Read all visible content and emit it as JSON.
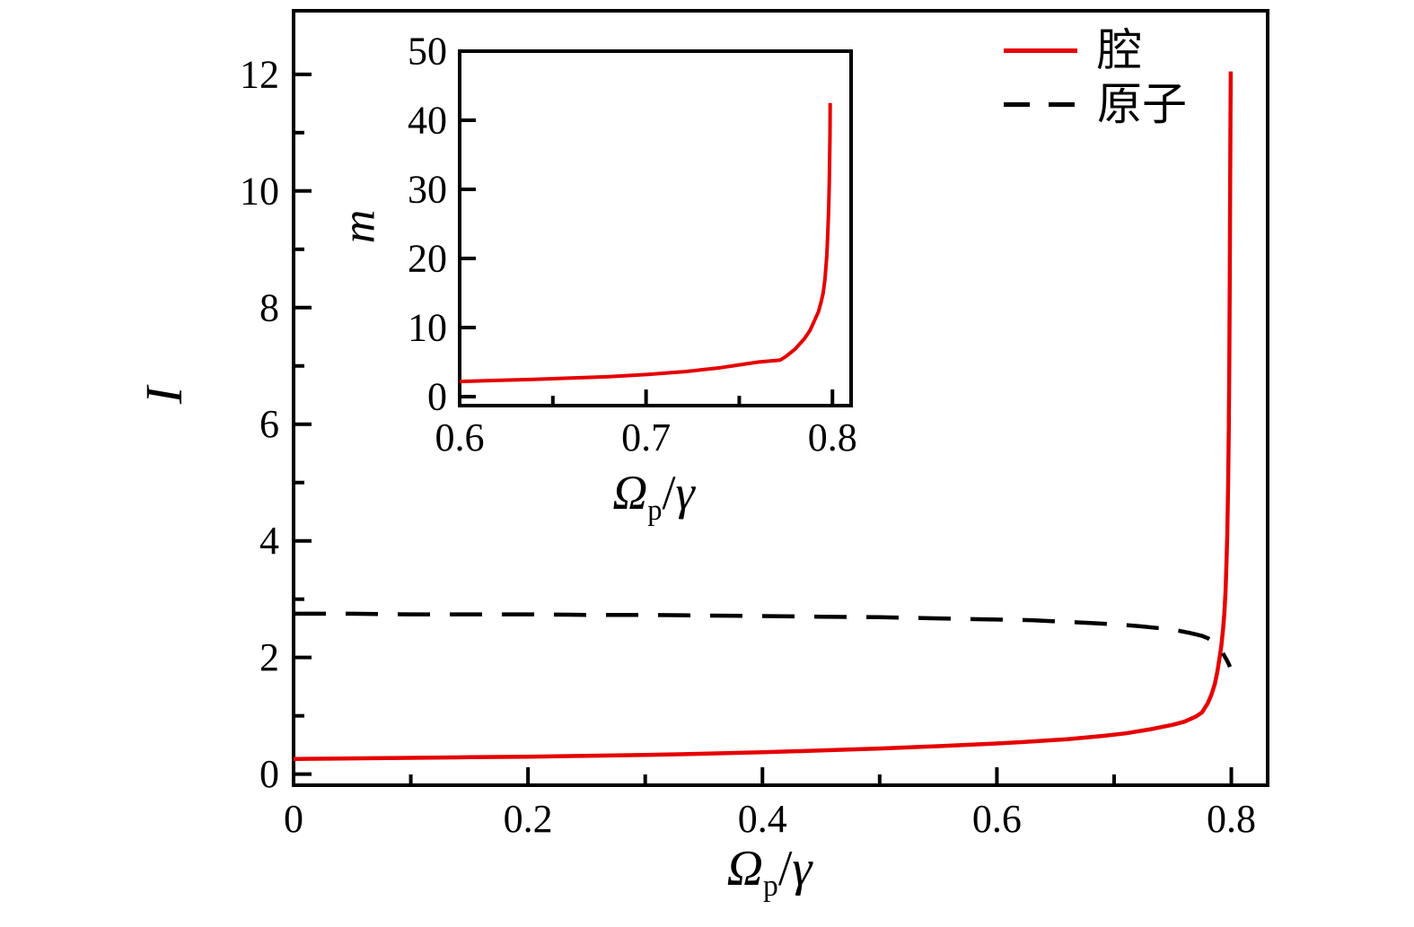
{
  "figure": {
    "background": "#ffffff",
    "colors": {
      "cavity": "#e60000",
      "atom": "#000000",
      "axis": "#000000"
    }
  },
  "legend": {
    "position": "top-right",
    "items": [
      {
        "label": "腔",
        "series": "cavity",
        "line": "solid",
        "color": "#e60000"
      },
      {
        "label": "原子",
        "series": "atom",
        "line": "dashed",
        "color": "#000000"
      }
    ]
  },
  "labels": {
    "main_x": {
      "omega": "Ω",
      "sub": "p",
      "slash": "/",
      "gamma": "γ"
    },
    "main_y": "I",
    "inset_x": {
      "omega": "Ω",
      "sub": "p",
      "slash": "/",
      "gamma": "γ"
    },
    "inset_y": "m"
  },
  "chart_data": [
    {
      "id": "main",
      "type": "line",
      "title": "",
      "xlabel": "Ω_p/γ",
      "ylabel": "I",
      "xlim": [
        0,
        0.831
      ],
      "ylim": [
        -0.19,
        13.09
      ],
      "grid": false,
      "legend_position": "top-right",
      "x_ticks": {
        "major": [
          0,
          0.2,
          0.4,
          0.6,
          0.8
        ],
        "minor": [
          0.1,
          0.3,
          0.5,
          0.7
        ],
        "labels": [
          "0",
          "0.2",
          "0.4",
          "0.6",
          "0.8"
        ]
      },
      "y_ticks": {
        "major": [
          0,
          2,
          4,
          6,
          8,
          10,
          12
        ],
        "minor": [
          1,
          3,
          5,
          7,
          9,
          11
        ],
        "labels": [
          "0",
          "2",
          "4",
          "6",
          "8",
          "10",
          "12"
        ]
      },
      "series": [
        {
          "key": "cavity",
          "name": "腔",
          "style": "solid",
          "color": "#e60000",
          "width": 4.5,
          "points": [
            [
              0.0,
              0.26
            ],
            [
              0.05,
              0.27
            ],
            [
              0.1,
              0.28
            ],
            [
              0.15,
              0.29
            ],
            [
              0.2,
              0.3
            ],
            [
              0.25,
              0.315
            ],
            [
              0.3,
              0.33
            ],
            [
              0.35,
              0.35
            ],
            [
              0.4,
              0.375
            ],
            [
              0.45,
              0.405
            ],
            [
              0.5,
              0.44
            ],
            [
              0.55,
              0.48
            ],
            [
              0.6,
              0.525
            ],
            [
              0.63,
              0.56
            ],
            [
              0.66,
              0.6
            ],
            [
              0.69,
              0.655
            ],
            [
              0.71,
              0.7
            ],
            [
              0.73,
              0.765
            ],
            [
              0.75,
              0.845
            ],
            [
              0.76,
              0.9
            ],
            [
              0.77,
              0.99
            ],
            [
              0.775,
              1.06
            ],
            [
              0.78,
              1.22
            ],
            [
              0.783,
              1.36
            ],
            [
              0.786,
              1.55
            ],
            [
              0.788,
              1.75
            ],
            [
              0.79,
              2.0
            ],
            [
              0.7915,
              2.2
            ],
            [
              0.793,
              2.5
            ],
            [
              0.794,
              2.75
            ],
            [
              0.795,
              3.1
            ],
            [
              0.7957,
              3.5
            ],
            [
              0.7965,
              4.1
            ],
            [
              0.7972,
              4.9
            ],
            [
              0.7978,
              5.9
            ],
            [
              0.7983,
              7.1
            ],
            [
              0.7987,
              8.5
            ],
            [
              0.799,
              10.0
            ],
            [
              0.7993,
              11.3
            ],
            [
              0.7995,
              12.05
            ]
          ]
        },
        {
          "key": "atom",
          "name": "原子",
          "style": "dashed",
          "color": "#000000",
          "width": 4.5,
          "points": [
            [
              0.0,
              2.75
            ],
            [
              0.05,
              2.75
            ],
            [
              0.1,
              2.74
            ],
            [
              0.15,
              2.74
            ],
            [
              0.2,
              2.74
            ],
            [
              0.25,
              2.73
            ],
            [
              0.3,
              2.73
            ],
            [
              0.35,
              2.72
            ],
            [
              0.4,
              2.71
            ],
            [
              0.45,
              2.7
            ],
            [
              0.5,
              2.69
            ],
            [
              0.55,
              2.67
            ],
            [
              0.6,
              2.65
            ],
            [
              0.63,
              2.64
            ],
            [
              0.66,
              2.61
            ],
            [
              0.68,
              2.59
            ],
            [
              0.7,
              2.57
            ],
            [
              0.72,
              2.54
            ],
            [
              0.74,
              2.5
            ],
            [
              0.755,
              2.46
            ],
            [
              0.765,
              2.42
            ],
            [
              0.775,
              2.37
            ],
            [
              0.78,
              2.33
            ],
            [
              0.785,
              2.27
            ],
            [
              0.789,
              2.18
            ],
            [
              0.792,
              2.1
            ],
            [
              0.794,
              2.03
            ],
            [
              0.796,
              1.96
            ],
            [
              0.798,
              1.88
            ],
            [
              0.7988,
              1.84
            ]
          ]
        }
      ]
    },
    {
      "id": "inset",
      "type": "line",
      "title": "",
      "xlabel": "Ω_p/γ",
      "ylabel": "m",
      "xlim": [
        0.6,
        0.81
      ],
      "ylim": [
        -1.3,
        50
      ],
      "grid": false,
      "legend_position": "none",
      "x_ticks": {
        "major": [
          0.6,
          0.7,
          0.8
        ],
        "minor": [
          0.65,
          0.75
        ],
        "labels": [
          "0.6",
          "0.7",
          "0.8"
        ]
      },
      "y_ticks": {
        "major": [
          0,
          10,
          20,
          30,
          40,
          50
        ],
        "minor": [],
        "labels": [
          "0",
          "10",
          "20",
          "30",
          "40",
          "50"
        ]
      },
      "series": [
        {
          "key": "cavity",
          "name": "腔",
          "style": "solid",
          "color": "#e60000",
          "width": 4,
          "points": [
            [
              0.6,
              2.2
            ],
            [
              0.62,
              2.35
            ],
            [
              0.64,
              2.5
            ],
            [
              0.66,
              2.7
            ],
            [
              0.68,
              2.9
            ],
            [
              0.7,
              3.2
            ],
            [
              0.72,
              3.6
            ],
            [
              0.74,
              4.2
            ],
            [
              0.75,
              4.6
            ],
            [
              0.76,
              5.0
            ],
            [
              0.772,
              5.3
            ],
            [
              0.775,
              5.8
            ],
            [
              0.78,
              6.9
            ],
            [
              0.785,
              8.4
            ],
            [
              0.788,
              9.6
            ],
            [
              0.79,
              10.8
            ],
            [
              0.7925,
              12.3
            ],
            [
              0.794,
              13.8
            ],
            [
              0.795,
              15.0
            ],
            [
              0.796,
              17.0
            ],
            [
              0.797,
              20.5
            ],
            [
              0.7975,
              23.5
            ],
            [
              0.798,
              27.5
            ],
            [
              0.7983,
              31.0
            ],
            [
              0.7985,
              34.4
            ],
            [
              0.7987,
              38.0
            ],
            [
              0.7988,
              42.5
            ]
          ]
        }
      ]
    }
  ]
}
